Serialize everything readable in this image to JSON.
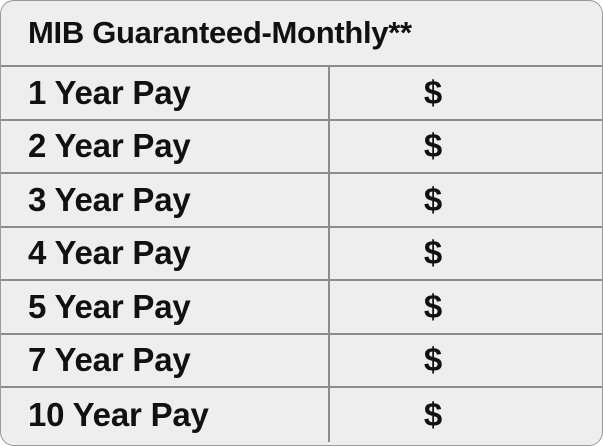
{
  "table": {
    "title": "MIB Guaranteed-Monthly**",
    "rows": [
      {
        "label": "1 Year Pay",
        "value": "$"
      },
      {
        "label": "2 Year Pay",
        "value": "$"
      },
      {
        "label": "3 Year Pay",
        "value": "$"
      },
      {
        "label": "4 Year Pay",
        "value": "$"
      },
      {
        "label": "5 Year Pay",
        "value": "$"
      },
      {
        "label": "7 Year Pay",
        "value": "$"
      },
      {
        "label": "10 Year Pay",
        "value": "$"
      }
    ]
  },
  "colors": {
    "background": "#eeeeee",
    "border": "#8c8c8c",
    "text": "#111111"
  }
}
